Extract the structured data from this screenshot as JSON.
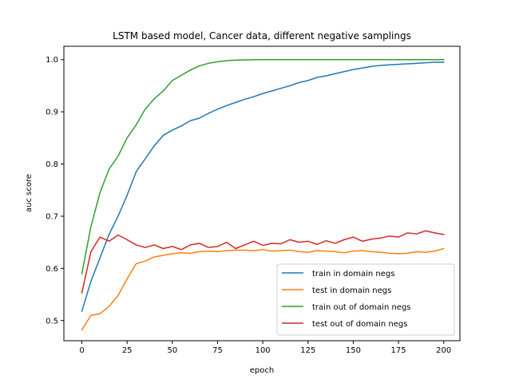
{
  "chart_data": {
    "type": "line",
    "title": "LSTM based model, Cancer data, different negative samplings",
    "xlabel": "epoch",
    "ylabel": "auc score",
    "xlim": [
      -9.95,
      208.95
    ],
    "ylim": [
      0.4614,
      1.0256
    ],
    "xticks": [
      0,
      25,
      50,
      75,
      100,
      125,
      150,
      175,
      200
    ],
    "yticks": [
      0.5,
      0.6,
      0.7,
      0.8,
      0.9,
      1.0
    ],
    "ytick_labels": [
      "0.5",
      "0.6",
      "0.7",
      "0.8",
      "0.9",
      "1.0"
    ],
    "grid": false,
    "legend_position": "lower right",
    "x_start": 0,
    "x_step": 5,
    "series": [
      {
        "name": "train in domain negs",
        "color": "#1f77b4",
        "values": [
          0.518,
          0.575,
          0.62,
          0.665,
          0.7,
          0.74,
          0.785,
          0.81,
          0.835,
          0.855,
          0.865,
          0.873,
          0.883,
          0.888,
          0.897,
          0.905,
          0.912,
          0.918,
          0.924,
          0.929,
          0.935,
          0.94,
          0.945,
          0.95,
          0.956,
          0.96,
          0.966,
          0.969,
          0.973,
          0.977,
          0.981,
          0.984,
          0.987,
          0.989,
          0.99,
          0.991,
          0.992,
          0.993,
          0.994,
          0.995,
          0.995
        ]
      },
      {
        "name": "test in domain negs",
        "color": "#ff7f0e",
        "values": [
          0.482,
          0.51,
          0.513,
          0.527,
          0.548,
          0.58,
          0.609,
          0.614,
          0.622,
          0.625,
          0.628,
          0.63,
          0.629,
          0.632,
          0.633,
          0.632,
          0.634,
          0.635,
          0.635,
          0.634,
          0.636,
          0.633,
          0.634,
          0.635,
          0.632,
          0.631,
          0.634,
          0.633,
          0.632,
          0.63,
          0.633,
          0.634,
          0.632,
          0.631,
          0.629,
          0.628,
          0.629,
          0.632,
          0.631,
          0.633,
          0.638
        ]
      },
      {
        "name": "train out of domain negs",
        "color": "#2ca02c",
        "values": [
          0.59,
          0.68,
          0.745,
          0.79,
          0.815,
          0.85,
          0.875,
          0.905,
          0.925,
          0.94,
          0.96,
          0.97,
          0.98,
          0.988,
          0.993,
          0.996,
          0.998,
          0.999,
          0.9995,
          0.9998,
          0.9999,
          1.0,
          1.0,
          1.0,
          1.0,
          1.0,
          1.0,
          1.0,
          1.0,
          1.0,
          1.0,
          1.0,
          1.0,
          1.0,
          1.0,
          1.0,
          1.0,
          1.0,
          1.0,
          1.0,
          1.0
        ]
      },
      {
        "name": "test out of domain negs",
        "color": "#d62728",
        "values": [
          0.553,
          0.632,
          0.66,
          0.652,
          0.664,
          0.655,
          0.645,
          0.64,
          0.645,
          0.638,
          0.642,
          0.636,
          0.645,
          0.648,
          0.64,
          0.642,
          0.65,
          0.638,
          0.645,
          0.652,
          0.644,
          0.648,
          0.647,
          0.655,
          0.65,
          0.652,
          0.646,
          0.653,
          0.648,
          0.655,
          0.66,
          0.652,
          0.656,
          0.658,
          0.662,
          0.66,
          0.668,
          0.666,
          0.672,
          0.668,
          0.665
        ]
      }
    ]
  }
}
